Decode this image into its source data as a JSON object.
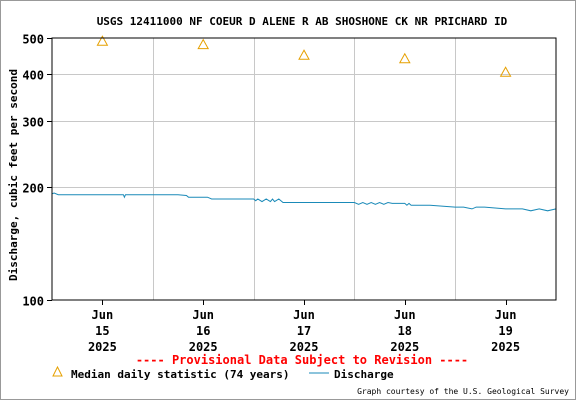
{
  "chart_data": {
    "type": "line",
    "title": "USGS 12411000 NF COEUR D ALENE R AB SHOSHONE CK NR PRICHARD ID",
    "ylabel": "Discharge, cubic feet per second",
    "xlabel": "",
    "y_scale": "log",
    "ylim": [
      100,
      500
    ],
    "xlim": [
      "2025-06-14 12:00",
      "2025-06-19 12:00"
    ],
    "grid": true,
    "y_ticks": [
      100,
      200,
      300,
      400,
      500
    ],
    "y_tick_labels": [
      "100",
      "200",
      "300",
      "400",
      "500"
    ],
    "x_ticks": [
      "2025-06-15",
      "2025-06-16",
      "2025-06-17",
      "2025-06-18",
      "2025-06-19"
    ],
    "x_tick_labels": [
      [
        "Jun",
        "15",
        "2025"
      ],
      [
        "Jun",
        "16",
        "2025"
      ],
      [
        "Jun",
        "17",
        "2025"
      ],
      [
        "Jun",
        "18",
        "2025"
      ],
      [
        "Jun",
        "19",
        "2025"
      ]
    ],
    "series": [
      {
        "name": "Median daily statistic (74 years)",
        "marker": "triangle",
        "color": "#e6a000",
        "x": [
          "2025-06-15",
          "2025-06-16",
          "2025-06-17",
          "2025-06-18",
          "2025-06-19"
        ],
        "values": [
          490,
          480,
          450,
          440,
          405
        ]
      },
      {
        "name": "Discharge",
        "marker": "line",
        "color": "#1a8ab8",
        "x": [
          "2025-06-14 12:00",
          "2025-06-14 12:30",
          "2025-06-14 13:30",
          "2025-06-15 05:00",
          "2025-06-15 05:15",
          "2025-06-15 05:30",
          "2025-06-15 09:00",
          "2025-06-15 12:00",
          "2025-06-15 18:00",
          "2025-06-15 20:00",
          "2025-06-15 20:30",
          "2025-06-16 00:00",
          "2025-06-16 01:00",
          "2025-06-16 01:30",
          "2025-06-16 02:00",
          "2025-06-16 04:00",
          "2025-06-16 07:00",
          "2025-06-16 12:00",
          "2025-06-16 12:30",
          "2025-06-16 13:00",
          "2025-06-16 14:00",
          "2025-06-16 15:00",
          "2025-06-16 16:00",
          "2025-06-16 16:30",
          "2025-06-16 17:00",
          "2025-06-16 18:00",
          "2025-06-16 19:00",
          "2025-06-17 00:00",
          "2025-06-17 12:00",
          "2025-06-17 13:00",
          "2025-06-17 14:00",
          "2025-06-17 15:00",
          "2025-06-17 16:00",
          "2025-06-17 17:00",
          "2025-06-17 18:00",
          "2025-06-17 19:00",
          "2025-06-17 20:00",
          "2025-06-17 21:00",
          "2025-06-17 22:00",
          "2025-06-18 00:00",
          "2025-06-18 00:30",
          "2025-06-18 01:00",
          "2025-06-18 01:30",
          "2025-06-18 06:00",
          "2025-06-18 12:00",
          "2025-06-18 13:00",
          "2025-06-18 14:00",
          "2025-06-18 16:00",
          "2025-06-18 17:00",
          "2025-06-18 19:00",
          "2025-06-19 00:00",
          "2025-06-19 04:00",
          "2025-06-19 06:00",
          "2025-06-19 08:00",
          "2025-06-19 10:00",
          "2025-06-19 12:00"
        ],
        "values": [
          192,
          193,
          191,
          191,
          188,
          191,
          191,
          191,
          191,
          190,
          188,
          188,
          188,
          187,
          186,
          186,
          186,
          186,
          184,
          186,
          183,
          186,
          183,
          186,
          183,
          186,
          182,
          182,
          182,
          180,
          182,
          180,
          182,
          180,
          182,
          180,
          182,
          181,
          181,
          181,
          179,
          181,
          179,
          179,
          177,
          177,
          177,
          175,
          177,
          177,
          175,
          175,
          173,
          175,
          173,
          175
        ]
      }
    ],
    "legend": {
      "placement": "bottom-left",
      "entries": [
        "Median daily statistic (74 years)",
        "Discharge"
      ]
    },
    "annotations": [
      "---- Provisional Data Subject to Revision ----",
      "Graph courtesy of the U.S. Geological Survey"
    ]
  },
  "colors": {
    "plot_border": "#000000",
    "grid": "#c8c8c8",
    "median_marker": "#e6a000",
    "discharge_line": "#1a8ab8",
    "provisional_text": "#ff0000"
  }
}
